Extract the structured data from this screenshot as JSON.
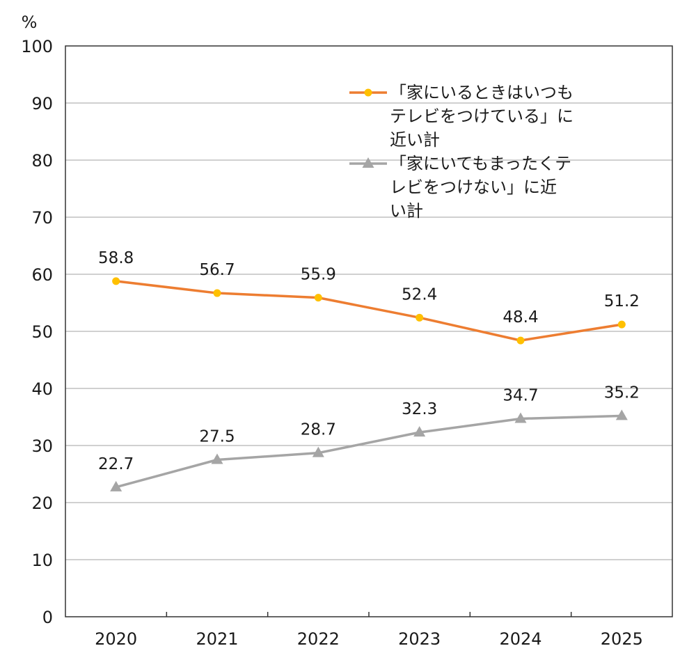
{
  "chart_data": {
    "type": "line",
    "yunit": "%",
    "ylim": [
      0,
      100
    ],
    "yticks": [
      0,
      10,
      20,
      30,
      40,
      50,
      60,
      70,
      80,
      90,
      100
    ],
    "categories": [
      "2020",
      "2021",
      "2022",
      "2023",
      "2024",
      "2025"
    ],
    "grid": true,
    "legend_position": "top-right",
    "series": [
      {
        "name_lines": [
          "「家にいるときはいつも",
          "テレビをつけている」に",
          "近い計"
        ],
        "values": [
          58.8,
          56.7,
          55.9,
          52.4,
          48.4,
          51.2
        ],
        "labels": [
          "58.8",
          "56.7",
          "55.9",
          "52.4",
          "48.4",
          "51.2"
        ],
        "line_color": "#ED7D31",
        "marker_color": "#FFC000",
        "marker": "circle"
      },
      {
        "name_lines": [
          "「家にいてもまったくテ",
          "レビをつけない」に近",
          "い計"
        ],
        "values": [
          22.7,
          27.5,
          28.7,
          32.3,
          34.7,
          35.2
        ],
        "labels": [
          "22.7",
          "27.5",
          "28.7",
          "32.3",
          "34.7",
          "35.2"
        ],
        "line_color": "#A5A5A5",
        "marker_color": "#A5A5A5",
        "marker": "triangle"
      }
    ]
  }
}
